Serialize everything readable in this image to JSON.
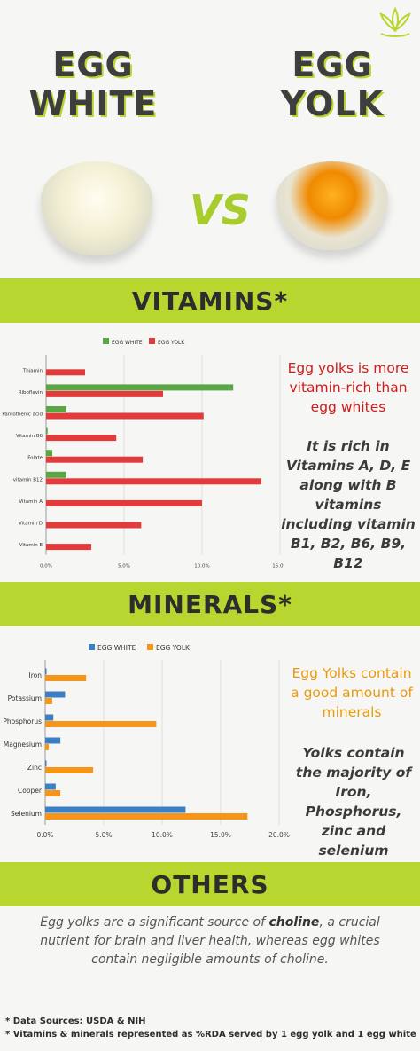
{
  "header": {
    "left_title_line1": "EGG",
    "left_title_line2": "WHITE",
    "right_title_line1": "EGG",
    "right_title_line2": "YOLK",
    "vs_label": "VS"
  },
  "sections": {
    "vitamins_label": "VITAMINS*",
    "minerals_label": "MINERALS*",
    "others_label": "OTHERS"
  },
  "vitamins_text": {
    "headline": "Egg yolks is more vitamin-rich than egg whites",
    "body": "It is rich in Vitamins A, D, E along with B vitamins including vitamin B1, B2, B6,  B9, B12"
  },
  "minerals_text": {
    "headline": "Egg Yolks contain a good amount of minerals",
    "body": "Yolks contain the majority of Iron, Phosphorus, zinc and selenium"
  },
  "others_text": {
    "before": "Egg yolks are a significant source of ",
    "highlight": "choline",
    "after": ", a crucial nutrient for brain and liver health, whereas egg whites contain negligible amounts of choline."
  },
  "footnotes": {
    "sources": "*  Data Sources: USDA & NIH",
    "note": "* Vitamins & minerals represented as %RDA served by 1 egg yolk and 1 egg white"
  },
  "colors": {
    "accent_green": "#b8d630",
    "vit_white": "#5aa544",
    "vit_yolk": "#e23b3b",
    "min_white": "#3b7fc4",
    "min_yolk": "#f5951a"
  },
  "chart_data": [
    {
      "type": "bar",
      "orientation": "horizontal",
      "categories": [
        "Thiamin",
        "Riboflavin",
        "Pantothenic acid",
        "Vitamin B6",
        "Folate",
        "vitamin B12",
        "Vitamin A",
        "Vitamin D",
        "Vitamin E"
      ],
      "series": [
        {
          "name": "EGG WHITE",
          "values": [
            0.0,
            12.0,
            1.3,
            0.1,
            0.4,
            1.3,
            0.0,
            0.0,
            0.0
          ]
        },
        {
          "name": "EGG YOLK",
          "values": [
            2.5,
            7.5,
            10.1,
            4.5,
            6.2,
            13.8,
            10.0,
            6.1,
            2.9
          ]
        }
      ],
      "xticks": [
        "0.0%",
        "5.0%",
        "10.0%",
        "15.0%"
      ],
      "xlim": [
        0,
        15
      ],
      "grid": true,
      "legend": "top"
    },
    {
      "type": "bar",
      "orientation": "horizontal",
      "categories": [
        "Iron",
        "Potassium",
        "Phosphorus",
        "Magnesium",
        "Zinc",
        "Copper",
        "Selenium"
      ],
      "series": [
        {
          "name": "EGG WHITE",
          "values": [
            0.1,
            1.7,
            0.7,
            1.3,
            0.1,
            0.9,
            12.0
          ]
        },
        {
          "name": "EGG YOLK",
          "values": [
            3.5,
            0.6,
            9.5,
            0.3,
            4.1,
            1.3,
            17.3
          ]
        }
      ],
      "xticks": [
        "0.0%",
        "5.0%",
        "10.0%",
        "15.0%",
        "20.0%"
      ],
      "xlim": [
        0,
        20
      ],
      "grid": true,
      "legend": "top"
    }
  ]
}
